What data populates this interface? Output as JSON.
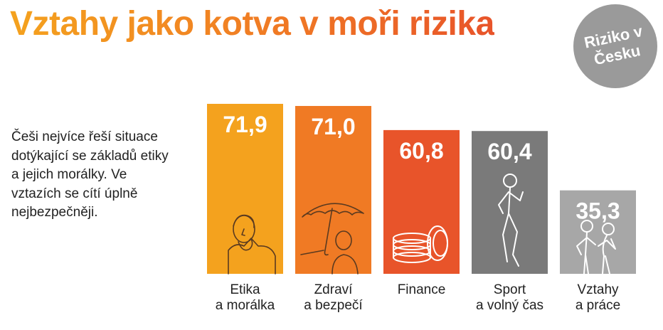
{
  "title": "Vztahy jako kotva v moři rizika",
  "badge": "Riziko v Česku",
  "description": "Češi nejvíce řeší situace dotýkající se základů etiky a jejich morálky. Ve vztazích se cítí úplně nejbezpečněji.",
  "chart_data": {
    "type": "bar",
    "categories": [
      [
        "Etika",
        "a morálka"
      ],
      [
        "Zdraví",
        "a bezpečí"
      ],
      [
        "Finance"
      ],
      [
        "Sport",
        "a volný čas"
      ],
      [
        "Vztahy",
        "a práce"
      ]
    ],
    "values": [
      71.9,
      71.0,
      60.8,
      60.4,
      35.3
    ],
    "value_labels": [
      "71,9",
      "71,0",
      "60,8",
      "60,4",
      "35,3"
    ],
    "colors": [
      "#f4a21e",
      "#f07a24",
      "#e8542a",
      "#7a7a7a",
      "#a7a7a7"
    ],
    "illustrations": [
      "person-hand-on-mouth-icon",
      "umbrella-and-person-icon",
      "coin-stack-icon",
      "runner-icon",
      "couple-icon"
    ],
    "ylim": [
      0,
      71.9
    ],
    "grid": false,
    "legend": "none"
  }
}
